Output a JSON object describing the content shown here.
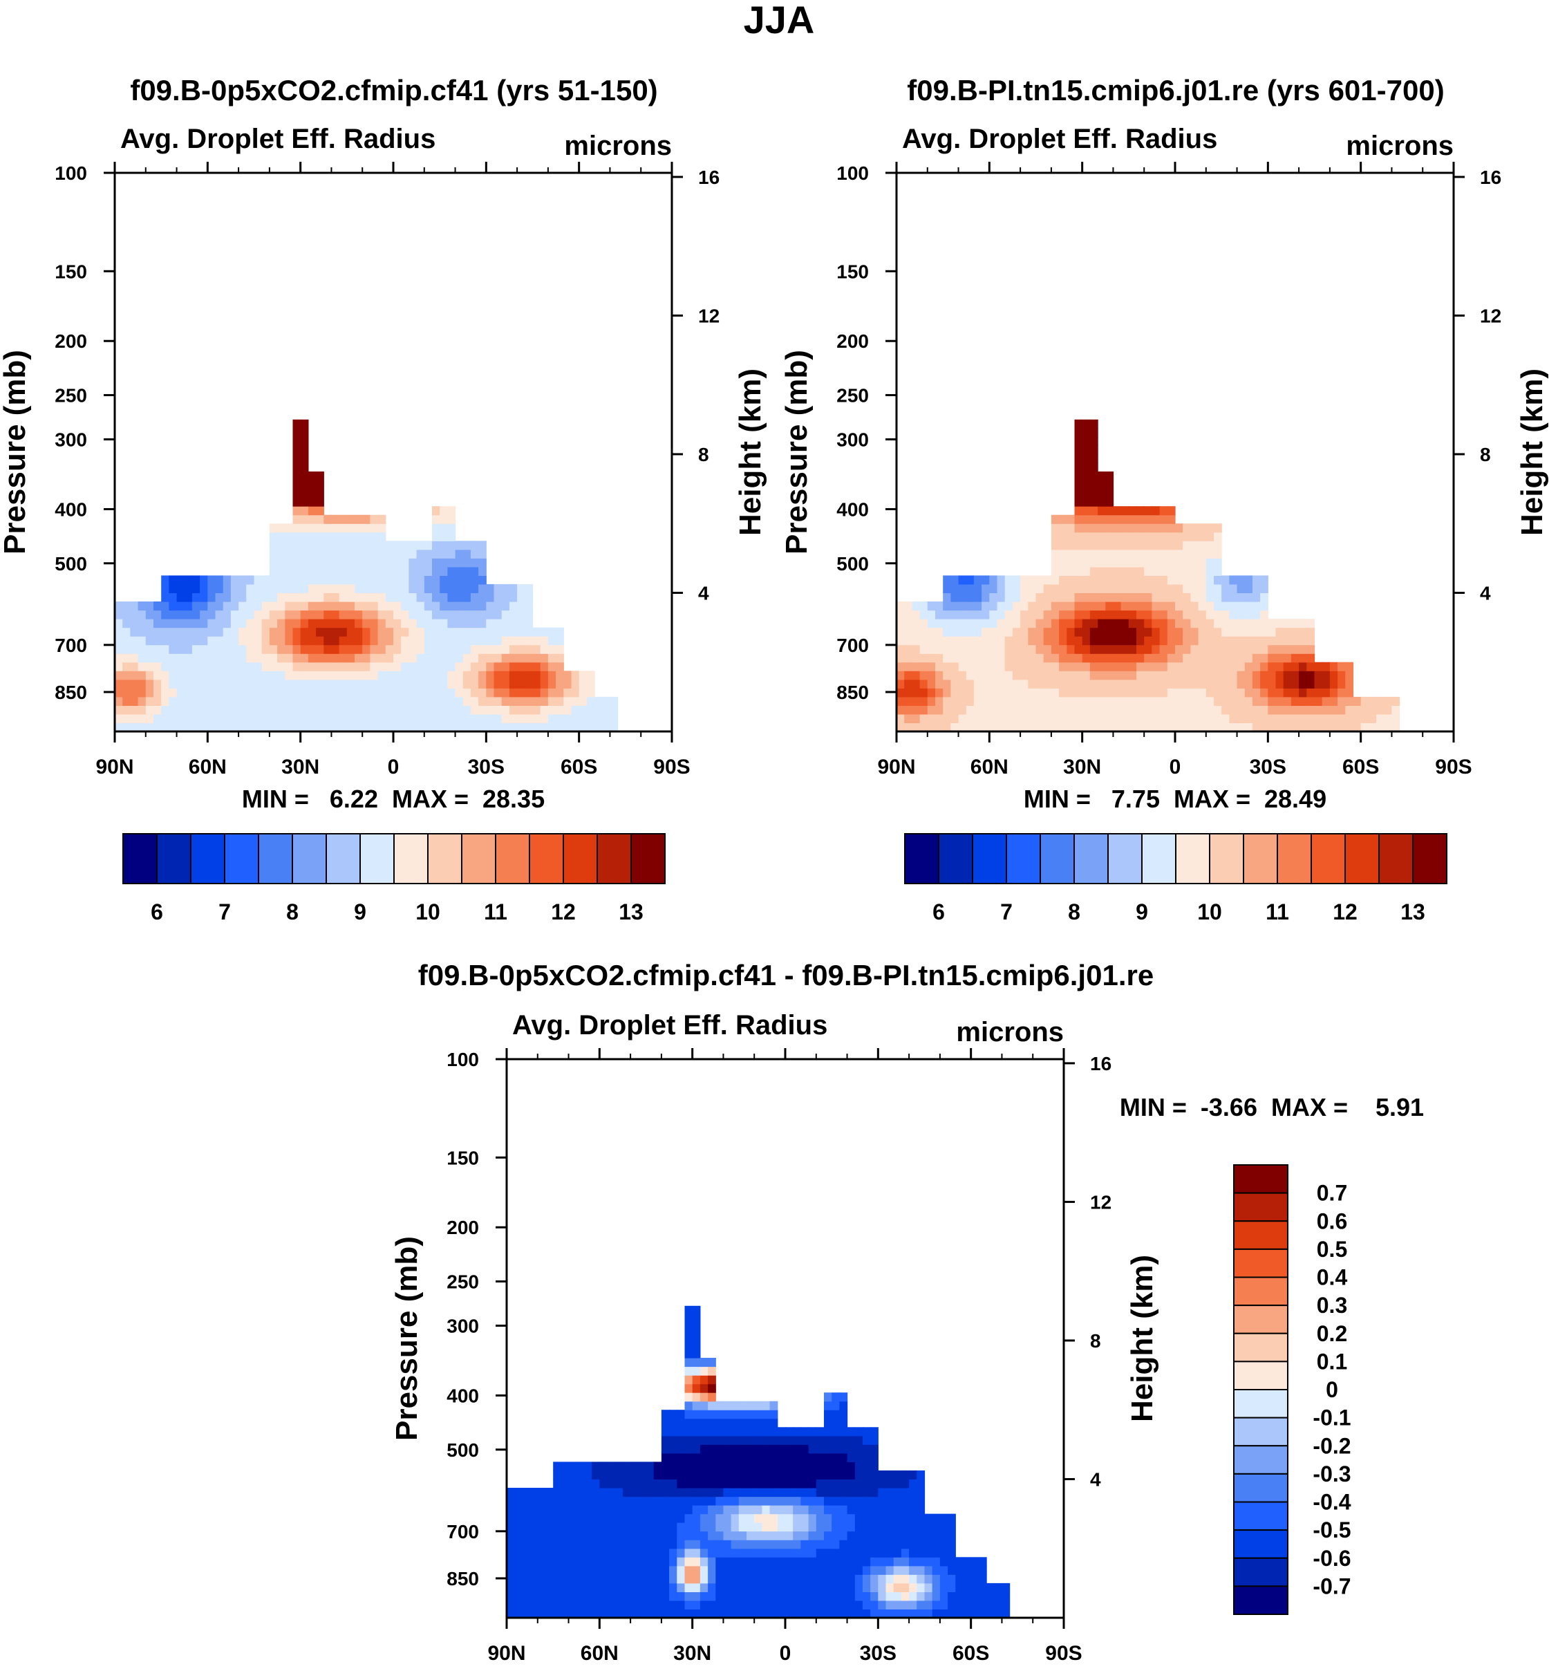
{
  "figure": {
    "title": "JJA"
  },
  "chart_data": [
    {
      "type": "heatmap",
      "title": "f09.B-0p5xCO2.cfmip.cf41 (yrs 51-150)",
      "left_subtitle": "Avg. Droplet Eff. Radius",
      "right_subtitle": "microns",
      "ylabel": "Pressure (mb)",
      "ylabel_right": "Height (km)",
      "x_ticks": [
        "90N",
        "60N",
        "30N",
        "0",
        "30S",
        "60S",
        "90S"
      ],
      "x_values": [
        90,
        60,
        30,
        0,
        -30,
        -60,
        -90
      ],
      "y_ticks": [
        "100",
        "150",
        "200",
        "250",
        "300",
        "400",
        "500",
        "700",
        "850"
      ],
      "y_values": [
        100,
        150,
        200,
        250,
        300,
        400,
        500,
        700,
        850
      ],
      "ylim": [
        100,
        1000
      ],
      "y_scale": "log",
      "right_ticks": [
        "16",
        "12",
        "8",
        "4"
      ],
      "right_values": [
        16,
        12,
        8,
        4
      ],
      "min_max_text": "MIN =   6.22  MAX =  28.35",
      "min": 6.22,
      "max": 28.35,
      "colorbar": {
        "orientation": "horizontal",
        "levels": [
          6,
          6.5,
          7,
          7.5,
          8,
          8.5,
          9,
          9.5,
          10,
          10.5,
          11,
          11.5,
          12,
          12.5,
          13
        ],
        "labels": [
          "6",
          "7",
          "8",
          "9",
          "10",
          "11",
          "12",
          "13"
        ]
      }
    },
    {
      "type": "heatmap",
      "title": "f09.B-PI.tn15.cmip6.j01.re (yrs 601-700)",
      "left_subtitle": "Avg. Droplet Eff. Radius",
      "right_subtitle": "microns",
      "ylabel": "Pressure (mb)",
      "ylabel_right": "Height (km)",
      "x_ticks": [
        "90N",
        "60N",
        "30N",
        "0",
        "30S",
        "60S",
        "90S"
      ],
      "x_values": [
        90,
        60,
        30,
        0,
        -30,
        -60,
        -90
      ],
      "y_ticks": [
        "100",
        "150",
        "200",
        "250",
        "300",
        "400",
        "500",
        "700",
        "850"
      ],
      "y_values": [
        100,
        150,
        200,
        250,
        300,
        400,
        500,
        700,
        850
      ],
      "ylim": [
        100,
        1000
      ],
      "y_scale": "log",
      "right_ticks": [
        "16",
        "12",
        "8",
        "4"
      ],
      "right_values": [
        16,
        12,
        8,
        4
      ],
      "min_max_text": "MIN =   7.75  MAX =  28.49",
      "min": 7.75,
      "max": 28.49,
      "colorbar": {
        "orientation": "horizontal",
        "levels": [
          6,
          6.5,
          7,
          7.5,
          8,
          8.5,
          9,
          9.5,
          10,
          10.5,
          11,
          11.5,
          12,
          12.5,
          13
        ],
        "labels": [
          "6",
          "7",
          "8",
          "9",
          "10",
          "11",
          "12",
          "13"
        ]
      }
    },
    {
      "type": "heatmap",
      "title": "f09.B-0p5xCO2.cfmip.cf41 - f09.B-PI.tn15.cmip6.j01.re",
      "left_subtitle": "Avg. Droplet Eff. Radius",
      "right_subtitle": "microns",
      "ylabel": "Pressure (mb)",
      "ylabel_right": "Height (km)",
      "x_ticks": [
        "90N",
        "60N",
        "30N",
        "0",
        "30S",
        "60S",
        "90S"
      ],
      "x_values": [
        90,
        60,
        30,
        0,
        -30,
        -60,
        -90
      ],
      "y_ticks": [
        "100",
        "150",
        "200",
        "250",
        "300",
        "400",
        "500",
        "700",
        "850"
      ],
      "y_values": [
        100,
        150,
        200,
        250,
        300,
        400,
        500,
        700,
        850
      ],
      "ylim": [
        100,
        1000
      ],
      "y_scale": "log",
      "right_ticks": [
        "16",
        "12",
        "8",
        "4"
      ],
      "right_values": [
        16,
        12,
        8,
        4
      ],
      "min_max_text": "MIN =  -3.66  MAX =    5.91",
      "min": -3.66,
      "max": 5.91,
      "colorbar": {
        "orientation": "vertical",
        "levels": [
          -0.7,
          -0.6,
          -0.5,
          -0.4,
          -0.3,
          -0.2,
          -0.1,
          0,
          0.1,
          0.2,
          0.3,
          0.4,
          0.5,
          0.6,
          0.7
        ],
        "labels": [
          "0.7",
          "0.6",
          "0.5",
          "0.4",
          "0.3",
          "0.2",
          "0.1",
          "0",
          "-0.1",
          "-0.2",
          "-0.3",
          "-0.4",
          "-0.5",
          "-0.6",
          "-0.7"
        ]
      }
    }
  ],
  "palette": [
    "#000080",
    "#0025b3",
    "#0040e6",
    "#2060ff",
    "#4a80f5",
    "#7aa2f7",
    "#aac6fa",
    "#d8eafd",
    "#fde9dc",
    "#fbcdb2",
    "#f8a682",
    "#f67f52",
    "#f05a28",
    "#de3b0f",
    "#b52006",
    "#800000"
  ]
}
